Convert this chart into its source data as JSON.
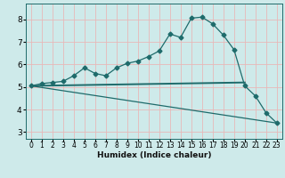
{
  "xlabel": "Humidex (Indice chaleur)",
  "bg_color": "#ceeaea",
  "grid_color": "#e8b8b8",
  "line_color": "#1e6b6b",
  "xlim": [
    -0.5,
    23.5
  ],
  "ylim": [
    2.7,
    8.7
  ],
  "xticks": [
    0,
    1,
    2,
    3,
    4,
    5,
    6,
    7,
    8,
    9,
    10,
    11,
    12,
    13,
    14,
    15,
    16,
    17,
    18,
    19,
    20,
    21,
    22,
    23
  ],
  "yticks": [
    3,
    4,
    5,
    6,
    7,
    8
  ],
  "curve1_x": [
    0,
    1,
    2,
    3,
    4,
    5,
    6,
    7,
    8,
    9,
    10,
    11,
    12,
    13,
    14,
    15,
    16,
    17,
    18,
    19,
    20,
    21,
    22,
    23
  ],
  "curve1_y": [
    5.05,
    5.15,
    5.2,
    5.25,
    5.5,
    5.85,
    5.6,
    5.5,
    5.85,
    6.05,
    6.15,
    6.35,
    6.6,
    7.35,
    7.2,
    8.05,
    8.1,
    7.8,
    7.3,
    6.65,
    5.05,
    4.6,
    3.85,
    3.4
  ],
  "curve2_x": [
    0,
    20
  ],
  "curve2_y": [
    5.05,
    5.2
  ],
  "curve3_x": [
    0,
    23
  ],
  "curve3_y": [
    5.05,
    3.4
  ],
  "marker": "D",
  "marker_size": 2.5,
  "xlabel_fontsize": 6.5,
  "tick_fontsize": 5.5
}
